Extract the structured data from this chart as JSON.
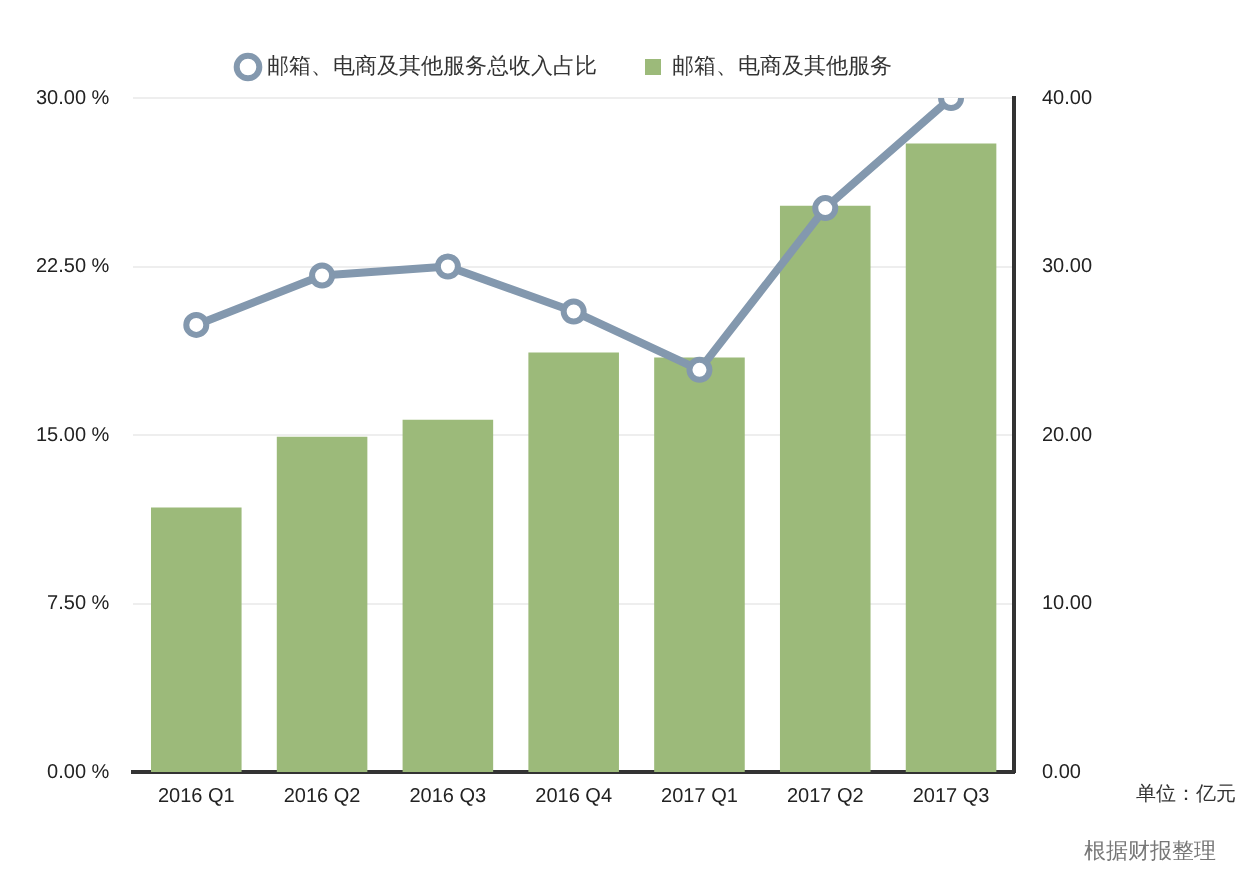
{
  "chart_data": {
    "type": "bar",
    "categories": [
      "2016 Q1",
      "2016 Q2",
      "2016 Q3",
      "2016 Q4",
      "2017 Q1",
      "2017 Q2",
      "2017 Q3"
    ],
    "series": [
      {
        "name": "邮箱、电商及其他服务总收入占比",
        "type": "line",
        "color": "#8398ae",
        "axis": "y",
        "values": [
          19.9,
          22.1,
          22.5,
          20.5,
          17.9,
          25.1,
          30.0
        ]
      },
      {
        "name": "邮箱、电商及其他服务",
        "color": "#9cba7a",
        "axis": "y2",
        "values": [
          15.7,
          19.9,
          20.9,
          24.9,
          24.6,
          33.6,
          37.3
        ]
      }
    ],
    "ylim": [
      0,
      30
    ],
    "yticks": [
      {
        "value": 0,
        "label": "0.00 %"
      },
      {
        "value": 7.5,
        "label": "7.50 %"
      },
      {
        "value": 15,
        "label": "15.00 %"
      },
      {
        "value": 22.5,
        "label": "22.50 %"
      },
      {
        "value": 30,
        "label": "30.00 %"
      }
    ],
    "y2lim": [
      0,
      40
    ],
    "y2ticks": [
      {
        "value": 0,
        "label": "0.00"
      },
      {
        "value": 10,
        "label": "10.00"
      },
      {
        "value": 20,
        "label": "20.00"
      },
      {
        "value": 30,
        "label": "30.00"
      },
      {
        "value": 40,
        "label": "40.00"
      }
    ],
    "grid": "y",
    "legend": "top",
    "marker": "circle",
    "line_style": "solid",
    "annotations": [
      "单位：亿元",
      "根据财报整理"
    ]
  }
}
